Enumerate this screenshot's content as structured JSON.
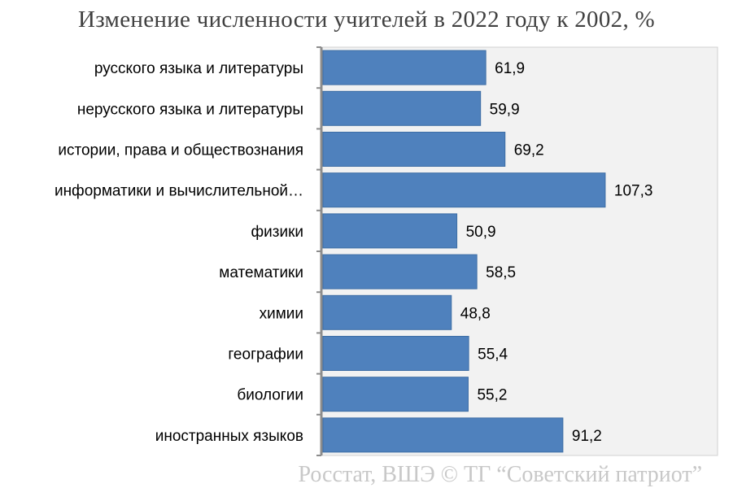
{
  "chart_data": {
    "type": "bar",
    "orientation": "horizontal",
    "title": "Изменение численности учителей в 2022 году к 2002, %",
    "categories": [
      "русского языка и литературы",
      "нерусского языка и литературы",
      "истории, права и обществознания",
      "информатики и вычислительной…",
      "физики",
      "математики",
      "химии",
      "географии",
      "биологии",
      "иностранных языков"
    ],
    "values": [
      61.9,
      59.9,
      69.2,
      107.3,
      50.9,
      58.5,
      48.8,
      55.4,
      55.2,
      91.2
    ],
    "value_labels": [
      "61,9",
      "59,9",
      "69,2",
      "107,3",
      "50,9",
      "58,5",
      "48,8",
      "55,4",
      "55,2",
      "91,2"
    ],
    "xlim": [
      0,
      150
    ],
    "xlabel": "",
    "ylabel": "",
    "grid": false,
    "legend": "none",
    "bar_color": "#4f81bd",
    "plot_background": "#f2f2f2",
    "source": "Росстат, ВШЭ © ТГ “Советский патриот”"
  }
}
